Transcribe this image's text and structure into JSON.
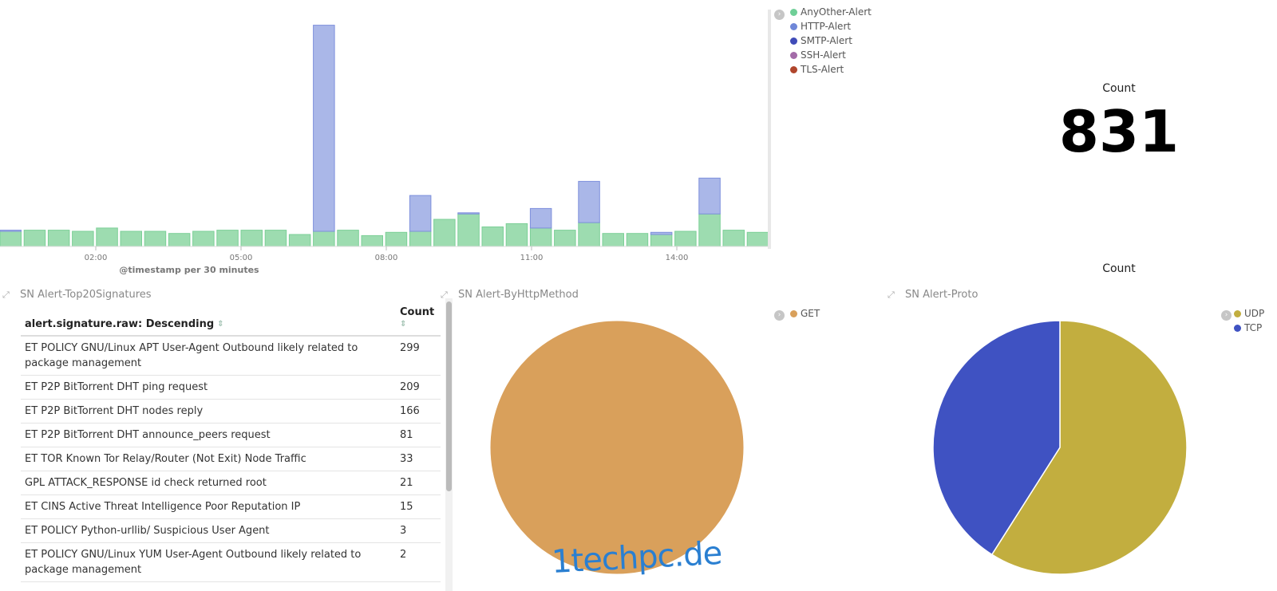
{
  "histogram": {
    "x_ticks": [
      "02:00",
      "05:00",
      "08:00",
      "11:00",
      "14:00"
    ],
    "x_title": "@timestamp per 30 minutes",
    "legend": [
      {
        "label": "AnyOther-Alert",
        "color": "#6fcf97",
        "icon": "green-dot-icon"
      },
      {
        "label": "HTTP-Alert",
        "color": "#6f87d8",
        "icon": "blue-dot-icon"
      },
      {
        "label": "SMTP-Alert",
        "color": "#3f4bb8",
        "icon": "dark-blue-dot-icon"
      },
      {
        "label": "SSH-Alert",
        "color": "#a36ba8",
        "icon": "purple-dot-icon"
      },
      {
        "label": "TLS-Alert",
        "color": "#b0462c",
        "icon": "red-dot-icon"
      }
    ]
  },
  "chart_data": [
    {
      "type": "bar",
      "stacked": true,
      "x_ticks": [
        "02:00",
        "05:00",
        "08:00",
        "11:00",
        "14:00"
      ],
      "xlabel": "@timestamp per 30 minutes",
      "series": [
        {
          "name": "AnyOther-Alert",
          "color": "#9ddcb0",
          "values": [
            14,
            15,
            15,
            14,
            17,
            14,
            14,
            12,
            14,
            15,
            15,
            15,
            11,
            14,
            15,
            10,
            13,
            14,
            25,
            30,
            18,
            21,
            17,
            15,
            22,
            12,
            12,
            11,
            14,
            30,
            15,
            13
          ]
        },
        {
          "name": "HTTP-Alert",
          "color": "#aab7e8",
          "values": [
            1,
            0,
            0,
            0,
            0,
            0,
            0,
            0,
            0,
            0,
            0,
            0,
            0,
            190,
            0,
            0,
            0,
            33,
            0,
            1,
            0,
            0,
            18,
            0,
            38,
            0,
            0,
            2,
            0,
            33,
            0,
            0
          ]
        }
      ]
    },
    {
      "type": "pie",
      "title": "",
      "labels": [
        "GET"
      ],
      "values": [
        100
      ],
      "colors": [
        "#d9a05b"
      ]
    },
    {
      "type": "pie",
      "title": "Count",
      "labels": [
        "UDP",
        "TCP"
      ],
      "values": [
        59,
        41
      ],
      "colors": [
        "#c2ae3f",
        "#3f52c2"
      ]
    }
  ],
  "metric": {
    "label": "Count",
    "value": "831"
  },
  "top_signatures": {
    "title": "SN Alert-Top20Signatures",
    "col_signature": "alert.signature.raw: Descending",
    "col_count": "Count",
    "rows": [
      {
        "signature": "ET POLICY GNU/Linux APT User-Agent Outbound likely related to package management",
        "count": "299"
      },
      {
        "signature": "ET P2P BitTorrent DHT ping request",
        "count": "209"
      },
      {
        "signature": "ET P2P BitTorrent DHT nodes reply",
        "count": "166"
      },
      {
        "signature": "ET P2P BitTorrent DHT announce_peers request",
        "count": "81"
      },
      {
        "signature": "ET TOR Known Tor Relay/Router (Not Exit) Node Traffic",
        "count": "33"
      },
      {
        "signature": "GPL ATTACK_RESPONSE id check returned root",
        "count": "21"
      },
      {
        "signature": "ET CINS Active Threat Intelligence Poor Reputation IP",
        "count": "15"
      },
      {
        "signature": "ET POLICY Python-urllib/ Suspicious User Agent",
        "count": "3"
      },
      {
        "signature": "ET POLICY GNU/Linux YUM User-Agent Outbound likely related to package management",
        "count": "2"
      }
    ]
  },
  "http_method": {
    "title": "SN Alert-ByHttpMethod",
    "legend": [
      {
        "label": "GET",
        "color": "#d9a05b"
      }
    ]
  },
  "proto": {
    "title": "SN Alert-Proto",
    "chart_title": "Count",
    "legend": [
      {
        "label": "UDP",
        "color": "#c2ae3f"
      },
      {
        "label": "TCP",
        "color": "#3f52c2"
      }
    ]
  },
  "watermark": "1techpc.de"
}
